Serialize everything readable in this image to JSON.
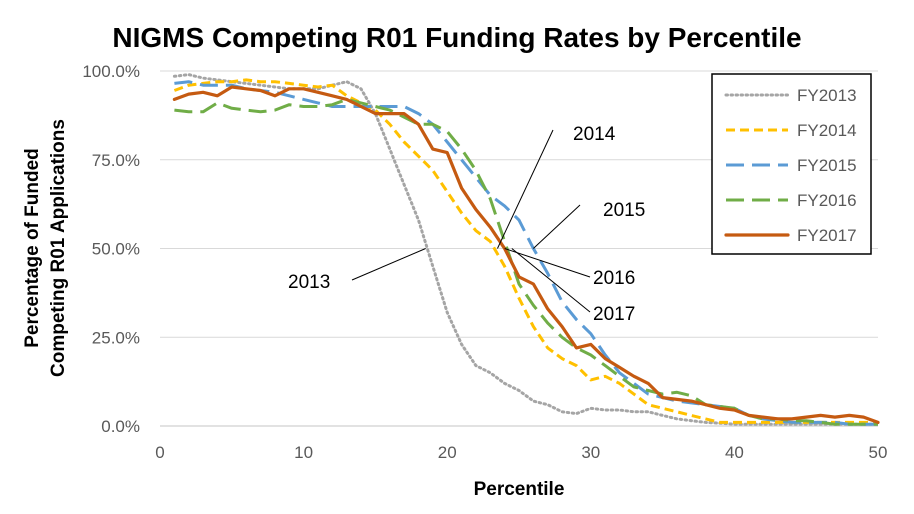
{
  "chart_data": {
    "type": "line",
    "title": "NIGMS Competing R01 Funding Rates by Percentile",
    "xlabel": "Percentile",
    "ylabel_lines": [
      "Percentage of Funded",
      "Competing R01  Applications"
    ],
    "xlim": [
      0,
      50
    ],
    "ylim": [
      0,
      100
    ],
    "x_ticks": [
      0,
      10,
      20,
      30,
      40,
      50
    ],
    "y_ticks": [
      0,
      25,
      50,
      75,
      100
    ],
    "y_tick_labels": [
      "0.0%",
      "25.0%",
      "50.0%",
      "75.0%",
      "100.0%"
    ],
    "grid": "horizontal",
    "legend_position": "top-right",
    "series": [
      {
        "name": "FY2013",
        "color": "#a5a5a5",
        "dash": "dotted",
        "points": [
          [
            1,
            98.5
          ],
          [
            2,
            99
          ],
          [
            3,
            98
          ],
          [
            4,
            97.5
          ],
          [
            5,
            97
          ],
          [
            6,
            96.5
          ],
          [
            7,
            96
          ],
          [
            8,
            95.5
          ],
          [
            9,
            95
          ],
          [
            10,
            95
          ],
          [
            11,
            95
          ],
          [
            12,
            96
          ],
          [
            13,
            97
          ],
          [
            14,
            95
          ],
          [
            15,
            88
          ],
          [
            16,
            78
          ],
          [
            17,
            68
          ],
          [
            18,
            58
          ],
          [
            19,
            45
          ],
          [
            20,
            32
          ],
          [
            21,
            23
          ],
          [
            22,
            17
          ],
          [
            23,
            15
          ],
          [
            24,
            12
          ],
          [
            25,
            10
          ],
          [
            26,
            7
          ],
          [
            27,
            6
          ],
          [
            28,
            4
          ],
          [
            29,
            3.5
          ],
          [
            30,
            5
          ],
          [
            31,
            4.5
          ],
          [
            32,
            4.5
          ],
          [
            33,
            4
          ],
          [
            34,
            4
          ],
          [
            35,
            3
          ],
          [
            36,
            2
          ],
          [
            37,
            1.5
          ],
          [
            38,
            1
          ],
          [
            39,
            0.8
          ],
          [
            40,
            0.5
          ],
          [
            41,
            0.5
          ],
          [
            42,
            0.5
          ],
          [
            43,
            0.5
          ],
          [
            44,
            0.5
          ],
          [
            45,
            0.5
          ],
          [
            46,
            0.5
          ],
          [
            47,
            0.5
          ],
          [
            48,
            0.5
          ],
          [
            49,
            0.5
          ],
          [
            50,
            0.5
          ]
        ]
      },
      {
        "name": "FY2014",
        "color": "#ffc000",
        "dash": "short",
        "points": [
          [
            1,
            94.5
          ],
          [
            2,
            96
          ],
          [
            3,
            96.5
          ],
          [
            4,
            97
          ],
          [
            5,
            97
          ],
          [
            6,
            97.5
          ],
          [
            7,
            97
          ],
          [
            8,
            97
          ],
          [
            9,
            96.5
          ],
          [
            10,
            96
          ],
          [
            11,
            95.5
          ],
          [
            12,
            96
          ],
          [
            13,
            93
          ],
          [
            14,
            91
          ],
          [
            15,
            89
          ],
          [
            16,
            85
          ],
          [
            17,
            80
          ],
          [
            18,
            76
          ],
          [
            19,
            72
          ],
          [
            20,
            66
          ],
          [
            21,
            60
          ],
          [
            22,
            55
          ],
          [
            23,
            52
          ],
          [
            24,
            45
          ],
          [
            25,
            36
          ],
          [
            26,
            28
          ],
          [
            27,
            22
          ],
          [
            28,
            19
          ],
          [
            29,
            17
          ],
          [
            30,
            13
          ],
          [
            31,
            14
          ],
          [
            32,
            12
          ],
          [
            33,
            9
          ],
          [
            34,
            6
          ],
          [
            35,
            5
          ],
          [
            36,
            4
          ],
          [
            37,
            3
          ],
          [
            38,
            2
          ],
          [
            39,
            1
          ],
          [
            40,
            1
          ],
          [
            41,
            1
          ],
          [
            42,
            1
          ],
          [
            43,
            1
          ],
          [
            44,
            1
          ],
          [
            45,
            1
          ],
          [
            46,
            1
          ],
          [
            47,
            1
          ],
          [
            48,
            1
          ],
          [
            49,
            1
          ],
          [
            50,
            1
          ]
        ]
      },
      {
        "name": "FY2015",
        "color": "#5b9bd5",
        "dash": "long",
        "points": [
          [
            1,
            96.5
          ],
          [
            2,
            97
          ],
          [
            3,
            96
          ],
          [
            4,
            96
          ],
          [
            5,
            96
          ],
          [
            6,
            95
          ],
          [
            7,
            94.5
          ],
          [
            8,
            94
          ],
          [
            9,
            93
          ],
          [
            10,
            92
          ],
          [
            11,
            91
          ],
          [
            12,
            90
          ],
          [
            13,
            90
          ],
          [
            14,
            90
          ],
          [
            15,
            90
          ],
          [
            16,
            90
          ],
          [
            17,
            90
          ],
          [
            18,
            88
          ],
          [
            19,
            85
          ],
          [
            20,
            80
          ],
          [
            21,
            75
          ],
          [
            22,
            70
          ],
          [
            23,
            65
          ],
          [
            24,
            62
          ],
          [
            25,
            58
          ],
          [
            26,
            50
          ],
          [
            27,
            43
          ],
          [
            28,
            35
          ],
          [
            29,
            30
          ],
          [
            30,
            26
          ],
          [
            31,
            20
          ],
          [
            32,
            15
          ],
          [
            33,
            12
          ],
          [
            34,
            9
          ],
          [
            35,
            8
          ],
          [
            36,
            7
          ],
          [
            37,
            6.5
          ],
          [
            38,
            6
          ],
          [
            39,
            5.5
          ],
          [
            40,
            5
          ],
          [
            41,
            3
          ],
          [
            42,
            2
          ],
          [
            43,
            1.5
          ],
          [
            44,
            1
          ],
          [
            45,
            1
          ],
          [
            46,
            1
          ],
          [
            47,
            1
          ],
          [
            48,
            0.5
          ],
          [
            49,
            0.5
          ],
          [
            50,
            0.5
          ]
        ]
      },
      {
        "name": "FY2016",
        "color": "#70ad47",
        "dash": "long",
        "points": [
          [
            1,
            89
          ],
          [
            2,
            88.5
          ],
          [
            3,
            88.5
          ],
          [
            4,
            91
          ],
          [
            5,
            89.5
          ],
          [
            6,
            89
          ],
          [
            7,
            88.5
          ],
          [
            8,
            89
          ],
          [
            9,
            90.5
          ],
          [
            10,
            90
          ],
          [
            11,
            90
          ],
          [
            12,
            90.5
          ],
          [
            13,
            92
          ],
          [
            14,
            91
          ],
          [
            15,
            90
          ],
          [
            16,
            89
          ],
          [
            17,
            87
          ],
          [
            18,
            85
          ],
          [
            19,
            85
          ],
          [
            20,
            83
          ],
          [
            21,
            78
          ],
          [
            22,
            72
          ],
          [
            23,
            64
          ],
          [
            24,
            52
          ],
          [
            25,
            40
          ],
          [
            26,
            34
          ],
          [
            27,
            29
          ],
          [
            28,
            25
          ],
          [
            29,
            22
          ],
          [
            30,
            20
          ],
          [
            31,
            17
          ],
          [
            32,
            14
          ],
          [
            33,
            11
          ],
          [
            34,
            10
          ],
          [
            35,
            9
          ],
          [
            36,
            9.5
          ],
          [
            37,
            8.5
          ],
          [
            38,
            6
          ],
          [
            39,
            5.5
          ],
          [
            40,
            5
          ],
          [
            41,
            3
          ],
          [
            42,
            2
          ],
          [
            43,
            2
          ],
          [
            44,
            1.5
          ],
          [
            45,
            1.5
          ],
          [
            46,
            1
          ],
          [
            47,
            0.5
          ],
          [
            48,
            0.5
          ],
          [
            49,
            0.5
          ],
          [
            50,
            0.5
          ]
        ]
      },
      {
        "name": "FY2017",
        "color": "#c55a11",
        "dash": "solid",
        "points": [
          [
            1,
            92
          ],
          [
            2,
            93.5
          ],
          [
            3,
            94
          ],
          [
            4,
            93
          ],
          [
            5,
            95.5
          ],
          [
            6,
            95
          ],
          [
            7,
            94.5
          ],
          [
            8,
            93
          ],
          [
            9,
            95
          ],
          [
            10,
            95
          ],
          [
            11,
            94
          ],
          [
            12,
            93
          ],
          [
            13,
            92
          ],
          [
            14,
            90
          ],
          [
            15,
            88
          ],
          [
            16,
            88
          ],
          [
            17,
            88
          ],
          [
            18,
            85
          ],
          [
            19,
            78
          ],
          [
            20,
            77
          ],
          [
            21,
            67
          ],
          [
            22,
            61
          ],
          [
            23,
            56
          ],
          [
            24,
            50
          ],
          [
            25,
            42
          ],
          [
            26,
            40
          ],
          [
            27,
            33
          ],
          [
            28,
            28
          ],
          [
            29,
            22
          ],
          [
            30,
            23
          ],
          [
            31,
            19
          ],
          [
            32,
            16.5
          ],
          [
            33,
            14
          ],
          [
            34,
            12
          ],
          [
            35,
            8
          ],
          [
            36,
            7.5
          ],
          [
            37,
            7
          ],
          [
            38,
            6
          ],
          [
            39,
            5
          ],
          [
            40,
            4.5
          ],
          [
            41,
            3
          ],
          [
            42,
            2.5
          ],
          [
            43,
            2
          ],
          [
            44,
            2
          ],
          [
            45,
            2.5
          ],
          [
            46,
            3
          ],
          [
            47,
            2.5
          ],
          [
            48,
            3
          ],
          [
            49,
            2.5
          ],
          [
            50,
            1
          ]
        ]
      }
    ],
    "annotations": [
      {
        "text": "2013",
        "target": [
          18.5,
          50
        ]
      },
      {
        "text": "2014",
        "target": [
          23.5,
          50
        ]
      },
      {
        "text": "2015",
        "target": [
          26.0,
          50
        ]
      },
      {
        "text": "2016",
        "target": [
          24.0,
          50
        ]
      },
      {
        "text": "2017",
        "target": [
          24.5,
          50
        ]
      }
    ]
  }
}
